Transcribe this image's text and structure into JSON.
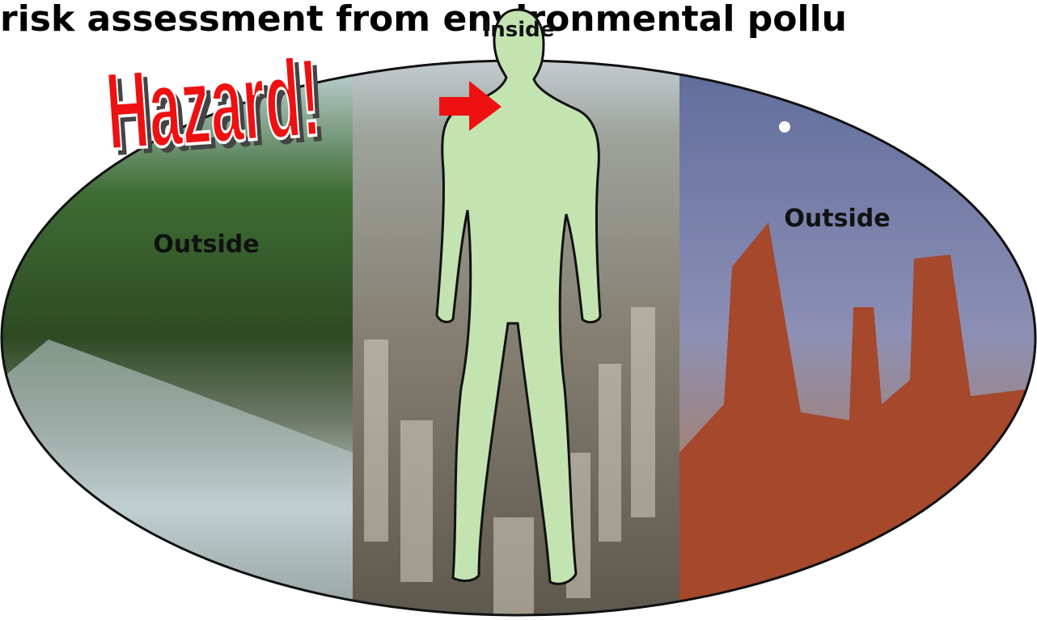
{
  "title": "risk assessment from environmental pollu",
  "hazard": "Hazard!",
  "labels": {
    "inside": "Inside",
    "outside_left": "Outside",
    "outside_right": "Outside"
  }
}
